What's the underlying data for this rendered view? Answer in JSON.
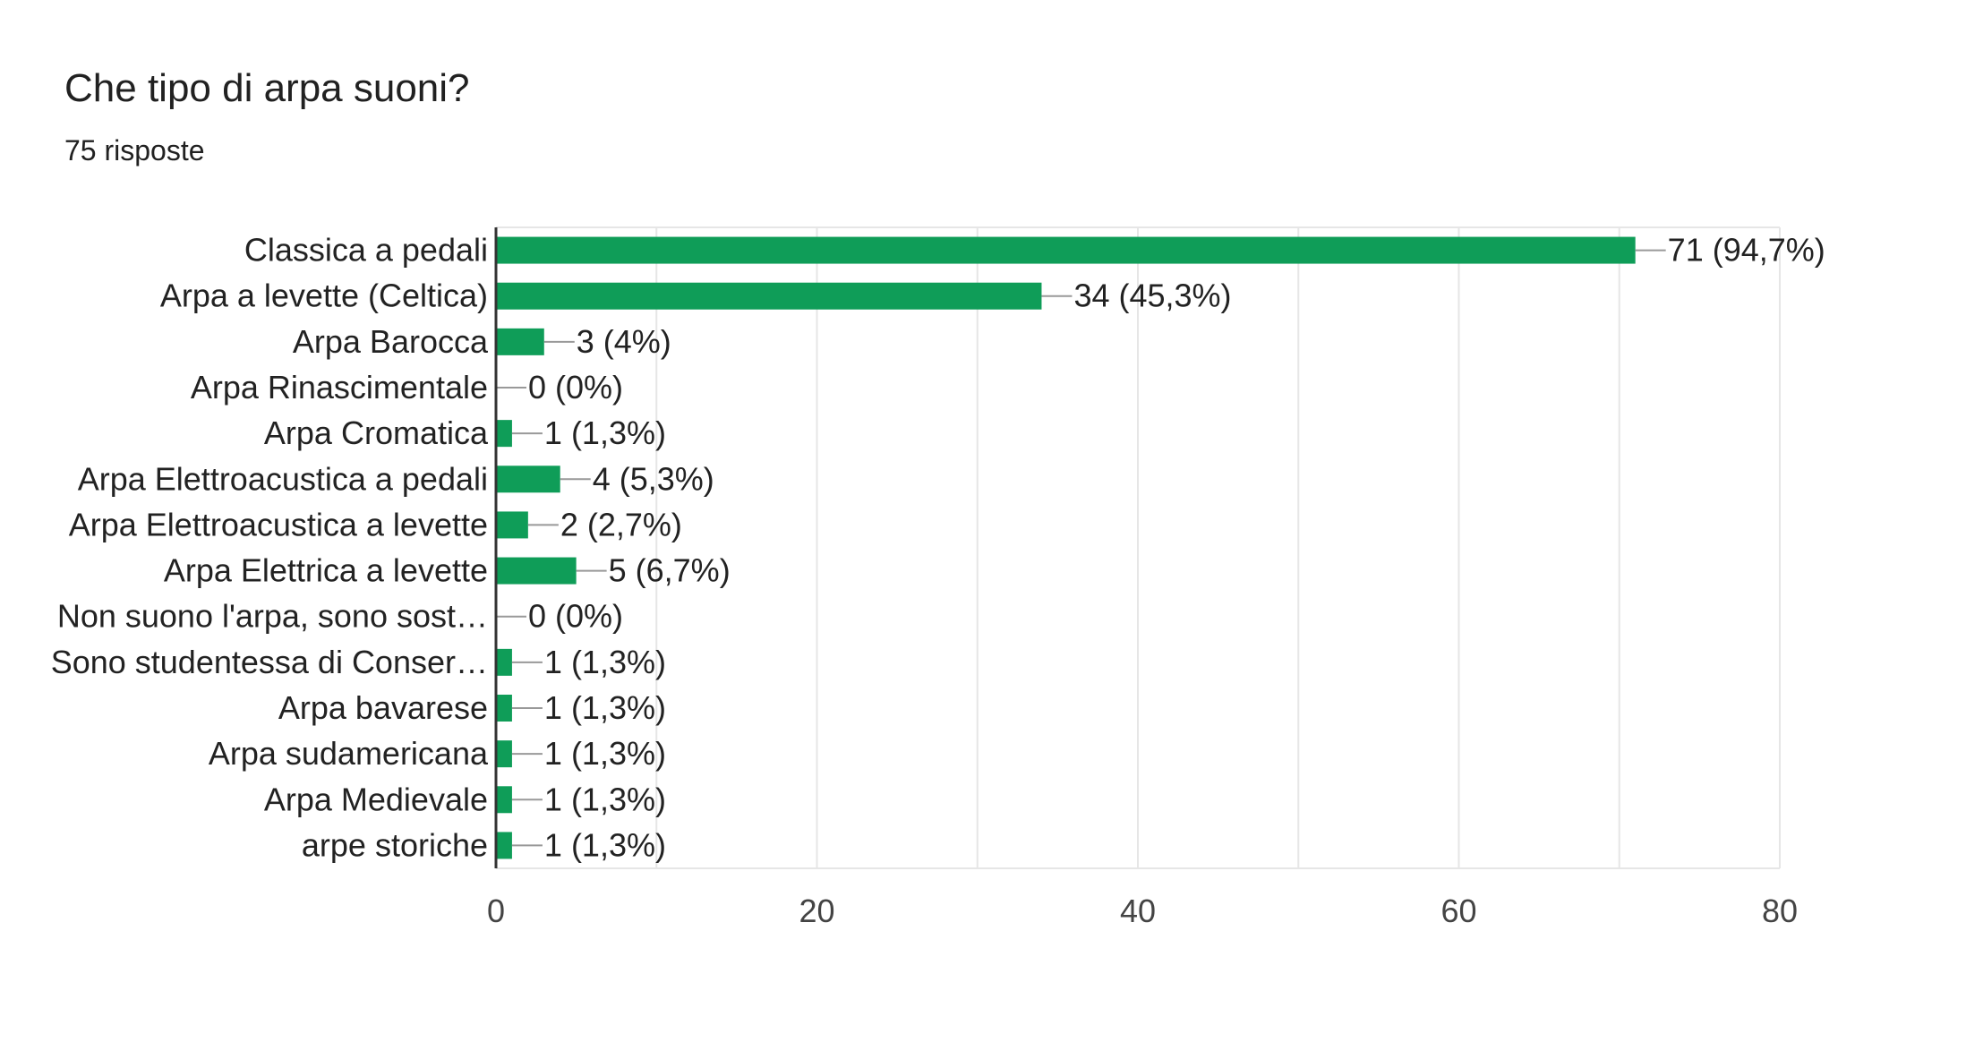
{
  "header": {
    "title": "Che tipo di arpa suoni?",
    "subtitle": "75 risposte"
  },
  "colors": {
    "bar": "#0f9d58",
    "grid": "#e6e6e6",
    "axis": "#333333",
    "leader": "#999999"
  },
  "chart_data": {
    "type": "bar",
    "orientation": "horizontal",
    "title": "Che tipo di arpa suoni?",
    "subtitle": "75 risposte",
    "categories": [
      "Classica a pedali",
      "Arpa a levette (Celtica)",
      "Arpa Barocca",
      "Arpa Rinascimentale",
      "Arpa Cromatica",
      "Arpa Elettroacustica a pedali",
      "Arpa Elettroacustica a levette",
      "Arpa Elettrica a levette",
      "Non suono l'arpa, sono sost…",
      "Sono studentessa di Conser…",
      "Arpa bavarese",
      "Arpa sudamericana",
      "Arpa Medievale",
      "arpe storiche"
    ],
    "values": [
      71,
      34,
      3,
      0,
      1,
      4,
      2,
      5,
      0,
      1,
      1,
      1,
      1,
      1
    ],
    "data_labels": [
      "71 (94,7%)",
      "34 (45,3%)",
      "3 (4%)",
      "0 (0%)",
      "1 (1,3%)",
      "4 (5,3%)",
      "2 (2,7%)",
      "5 (6,7%)",
      "0 (0%)",
      "1 (1,3%)",
      "1 (1,3%)",
      "1 (1,3%)",
      "1 (1,3%)",
      "1 (1,3%)"
    ],
    "xlim": [
      0,
      80
    ],
    "xticks": [
      0,
      20,
      40,
      60,
      80
    ],
    "xtick_labels": [
      "0",
      "20",
      "40",
      "60",
      "80"
    ],
    "grid": true,
    "legend": "none"
  }
}
